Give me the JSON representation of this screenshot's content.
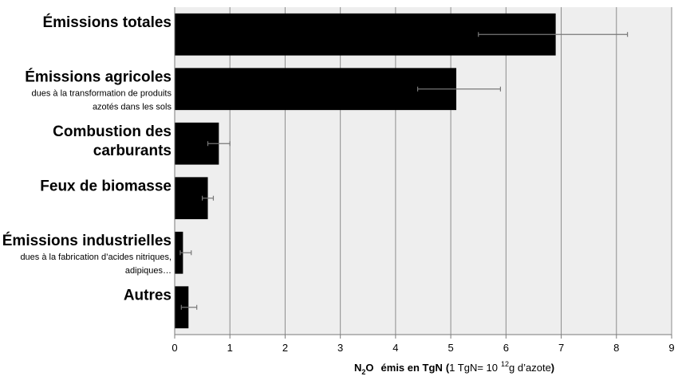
{
  "chart_data": {
    "type": "bar",
    "orientation": "horizontal",
    "categories": [
      {
        "title": [
          "Émissions totales"
        ],
        "subtitle": []
      },
      {
        "title": [
          "Émissions agricoles"
        ],
        "subtitle": [
          "dues à la transformation de produits",
          "azotés dans les sols"
        ]
      },
      {
        "title": [
          "Combustion des",
          "carburants"
        ],
        "subtitle": []
      },
      {
        "title": [
          "Feux de biomasse"
        ],
        "subtitle": []
      },
      {
        "title": [
          "Émissions industrielles"
        ],
        "subtitle": [
          "dues à la fabrication d’acides nitriques,",
          "adipiques…"
        ]
      },
      {
        "title": [
          "Autres"
        ],
        "subtitle": []
      }
    ],
    "values": [
      6.9,
      5.1,
      0.8,
      0.6,
      0.15,
      0.25
    ],
    "error_low": [
      5.5,
      4.4,
      0.6,
      0.5,
      0.1,
      0.12
    ],
    "error_high": [
      8.2,
      5.9,
      1.0,
      0.7,
      0.3,
      0.4
    ],
    "xlim": [
      0,
      9
    ],
    "xticks": [
      "0",
      "1",
      "2",
      "3",
      "4",
      "5",
      "6",
      "7",
      "8",
      "9"
    ],
    "xlabel": {
      "n2o_N": "N",
      "n2o_sub": "2",
      "n2o_O": "O",
      "part1": "émis en TgN",
      "paren_open": "(",
      "part2": "1 TgN= 10",
      "sup": "12",
      "part3": "g d’azote",
      "paren_close": ")"
    },
    "grid": "vertical",
    "colors": {
      "bar": "#000000",
      "plot_bg": "#eeeeee",
      "grid": "#8c8c8c",
      "error": "#777777"
    }
  }
}
